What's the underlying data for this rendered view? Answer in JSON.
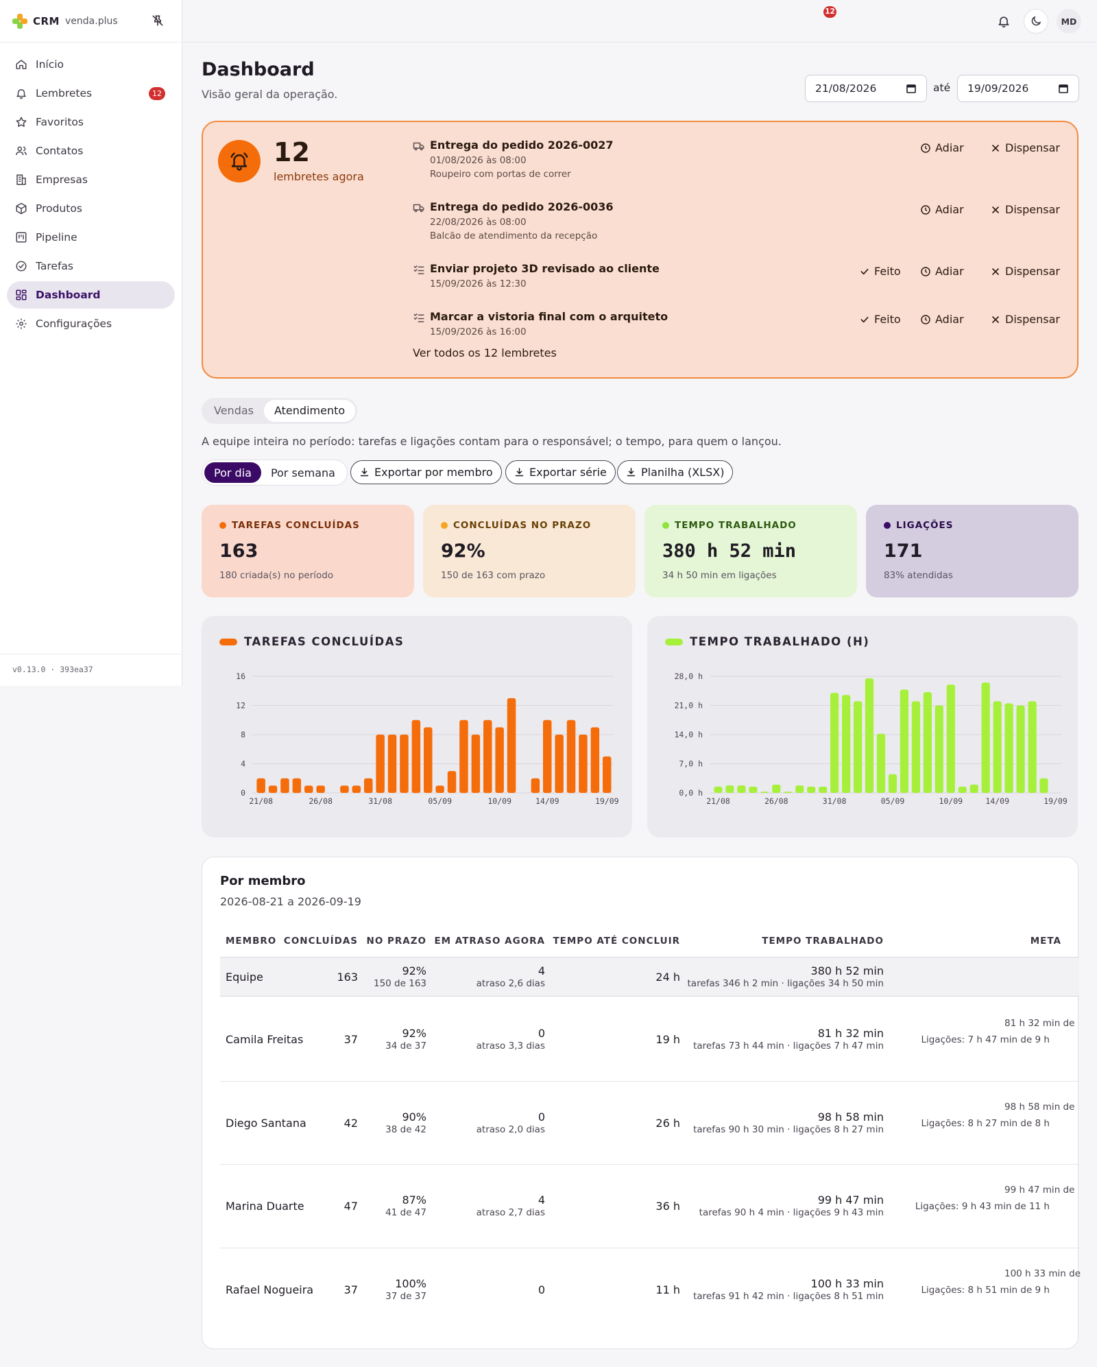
{
  "brand": {
    "name": "CRM",
    "sub": "venda.plus"
  },
  "sidebar": {
    "items": [
      {
        "label": "Início",
        "icon": "home-icon"
      },
      {
        "label": "Lembretes",
        "icon": "bell-icon",
        "badge": "12"
      },
      {
        "label": "Favoritos",
        "icon": "star-icon"
      },
      {
        "label": "Contatos",
        "icon": "users-icon"
      },
      {
        "label": "Empresas",
        "icon": "building-icon"
      },
      {
        "label": "Produtos",
        "icon": "package-icon"
      },
      {
        "label": "Pipeline",
        "icon": "kanban-icon"
      },
      {
        "label": "Tarefas",
        "icon": "check-circle-icon"
      },
      {
        "label": "Dashboard",
        "icon": "grid-icon",
        "active": true
      },
      {
        "label": "Configurações",
        "icon": "gear-icon"
      }
    ],
    "version": "v0.13.0 · 393ea37"
  },
  "topbar": {
    "notif_count": "12",
    "avatar": "MD"
  },
  "header": {
    "title": "Dashboard",
    "subtitle": "Visão geral da operação.",
    "date_from": "21/08/2026",
    "date_sep": "até",
    "date_to": "19/09/2026"
  },
  "reminders": {
    "count": "12",
    "count_label": "lembretes agora",
    "items": [
      {
        "title": "Entrega do pedido 2026-0027",
        "date": "01/08/2026 às 08:00",
        "desc": "Roupeiro com portas de correr",
        "icon": "truck-icon"
      },
      {
        "title": "Entrega do pedido 2026-0036",
        "date": "22/08/2026 às 08:00",
        "desc": "Balcão de atendimento da recepção",
        "icon": "truck-icon"
      },
      {
        "title": "Enviar projeto 3D revisado ao cliente",
        "date": "15/09/2026 às 12:30",
        "desc": "",
        "icon": "list-check-icon"
      },
      {
        "title": "Marcar a vistoria final com o arquiteto",
        "date": "15/09/2026 às 16:00",
        "desc": "",
        "icon": "list-check-icon"
      }
    ],
    "done_label": "Feito",
    "snooze_label": "Adiar",
    "dismiss_label": "Dispensar",
    "see_all": "Ver todos os 12 lembretes"
  },
  "tabs": {
    "sales": "Vendas",
    "service": "Atendimento"
  },
  "team_note": "A equipe inteira no período: tarefas e ligações contam para o responsável; o tempo, para quem o lançou.",
  "toolbar": {
    "by_day": "Por dia",
    "by_week": "Por semana",
    "export_member": "Exportar por membro",
    "export_series": "Exportar série",
    "spreadsheet": "Planilha (XLSX)"
  },
  "kpis": [
    {
      "label": "TAREFAS CONCLUÍDAS",
      "value": "163",
      "sub": "180 criada(s) no período",
      "bg": "#fad9cc",
      "dot": "#f56d0a",
      "color": "#7a2e08"
    },
    {
      "label": "CONCLUÍDAS NO PRAZO",
      "value": "92%",
      "sub": "150 de 163 com prazo",
      "bg": "#f8e8d5",
      "dot": "#f5a524",
      "color": "#6a4008"
    },
    {
      "label": "TEMPO TRABALHADO",
      "value": "380 h 52 min",
      "sub": "34 h 50 min em ligações",
      "bg": "#e4f6d6",
      "dot": "#8fe33a",
      "color": "#2e5a10"
    },
    {
      "label": "LIGAÇÕES",
      "value": "171",
      "sub": "83% atendidas",
      "bg": "#d4cde0",
      "dot": "#3a0a66",
      "color": "#2a0a4a"
    }
  ],
  "chart_data": [
    {
      "type": "bar",
      "title": "TAREFAS CONCLUÍDAS",
      "color": "#f56d0a",
      "ylim": [
        0,
        16
      ],
      "yticks": [
        "0",
        "4",
        "8",
        "12",
        "16"
      ],
      "xticks": [
        "21/08",
        "26/08",
        "31/08",
        "05/09",
        "10/09",
        "14/09",
        "19/09"
      ],
      "categories": [
        "21/08",
        "22/08",
        "23/08",
        "24/08",
        "25/08",
        "26/08",
        "27/08",
        "28/08",
        "29/08",
        "30/08",
        "31/08",
        "01/09",
        "02/09",
        "03/09",
        "04/09",
        "05/09",
        "06/09",
        "07/09",
        "08/09",
        "09/09",
        "10/09",
        "11/09",
        "12/09",
        "13/09",
        "14/09",
        "15/09",
        "16/09",
        "17/09",
        "18/09",
        "19/09"
      ],
      "values": [
        2,
        1,
        2,
        2,
        1,
        1,
        0,
        1,
        1,
        2,
        8,
        8,
        8,
        10,
        9,
        1,
        3,
        10,
        8,
        10,
        9,
        13,
        0,
        2,
        10,
        8,
        10,
        8,
        9,
        5
      ]
    },
    {
      "type": "bar",
      "title": "TEMPO TRABALHADO (H)",
      "color": "#a6f03c",
      "ylim": [
        0,
        28
      ],
      "yticks": [
        "0,0 h",
        "7,0 h",
        "14,0 h",
        "21,0 h",
        "28,0 h"
      ],
      "xticks": [
        "21/08",
        "26/08",
        "31/08",
        "05/09",
        "10/09",
        "14/09",
        "19/09"
      ],
      "categories": [
        "21/08",
        "22/08",
        "23/08",
        "24/08",
        "25/08",
        "26/08",
        "27/08",
        "28/08",
        "29/08",
        "30/08",
        "31/08",
        "01/09",
        "02/09",
        "03/09",
        "04/09",
        "05/09",
        "06/09",
        "07/09",
        "08/09",
        "09/09",
        "10/09",
        "11/09",
        "12/09",
        "13/09",
        "14/09",
        "15/09",
        "16/09",
        "17/09",
        "18/09",
        "19/09"
      ],
      "values": [
        1.5,
        1.8,
        1.8,
        1.5,
        0.3,
        2,
        0.3,
        1.8,
        1.5,
        1.5,
        24,
        23.5,
        22,
        27.5,
        14.2,
        4.5,
        24.8,
        22,
        24.2,
        21,
        26,
        1.5,
        2,
        26.5,
        22,
        21.5,
        21,
        22,
        3.5,
        0
      ]
    }
  ],
  "members": {
    "title": "Por membro",
    "range": "2026-08-21 a 2026-09-19",
    "headers": {
      "member": "MEMBRO",
      "done": "CONCLUÍDAS",
      "on_time": "NO PRAZO",
      "late": "EM ATRASO AGORA",
      "time_to_finish": "TEMPO ATÉ CONCLUIR",
      "worked": "TEMPO TRABALHADO",
      "goal": "META"
    },
    "rows": [
      {
        "name": "Equipe",
        "done": "163",
        "pct": "92%",
        "pct_sub": "150 de 163",
        "late": "4",
        "late_sub": "atraso 2,6 dias",
        "ttc": "24 h",
        "worked": "380 h 52 min",
        "worked_sub": "tarefas 346 h 2 min · ligações 34 h 50 min",
        "meta": "",
        "meta_sub": ""
      },
      {
        "name": "Camila Freitas",
        "done": "37",
        "pct": "92%",
        "pct_sub": "34 de 37",
        "late": "0",
        "late_sub": "atraso 3,3 dias",
        "ttc": "19 h",
        "worked": "81 h 32 min",
        "worked_sub": "tarefas 73 h 44 min · ligações 7 h 47 min",
        "meta": "81 h 32 min de",
        "meta_sub": "Ligações: 7 h 47 min de 9 h"
      },
      {
        "name": "Diego Santana",
        "done": "42",
        "pct": "90%",
        "pct_sub": "38 de 42",
        "late": "0",
        "late_sub": "atraso 2,0 dias",
        "ttc": "26 h",
        "worked": "98 h 58 min",
        "worked_sub": "tarefas 90 h 30 min · ligações 8 h 27 min",
        "meta": "98 h 58 min de",
        "meta_sub": "Ligações: 8 h 27 min de 8 h"
      },
      {
        "name": "Marina Duarte",
        "done": "47",
        "pct": "87%",
        "pct_sub": "41 de 47",
        "late": "4",
        "late_sub": "atraso 2,7 dias",
        "ttc": "36 h",
        "worked": "99 h 47 min",
        "worked_sub": "tarefas 90 h 4 min · ligações 9 h 43 min",
        "meta": "99 h 47 min de",
        "meta_sub": "Ligações: 9 h 43 min de 11 h"
      },
      {
        "name": "Rafael Nogueira",
        "done": "37",
        "pct": "100%",
        "pct_sub": "37 de 37",
        "late": "0",
        "late_sub": "",
        "ttc": "11 h",
        "worked": "100 h 33 min",
        "worked_sub": "tarefas 91 h 42 min · ligações 8 h 51 min",
        "meta": "100 h 33 min de",
        "meta_sub": "Ligações: 8 h 51 min de 9 h"
      }
    ]
  }
}
